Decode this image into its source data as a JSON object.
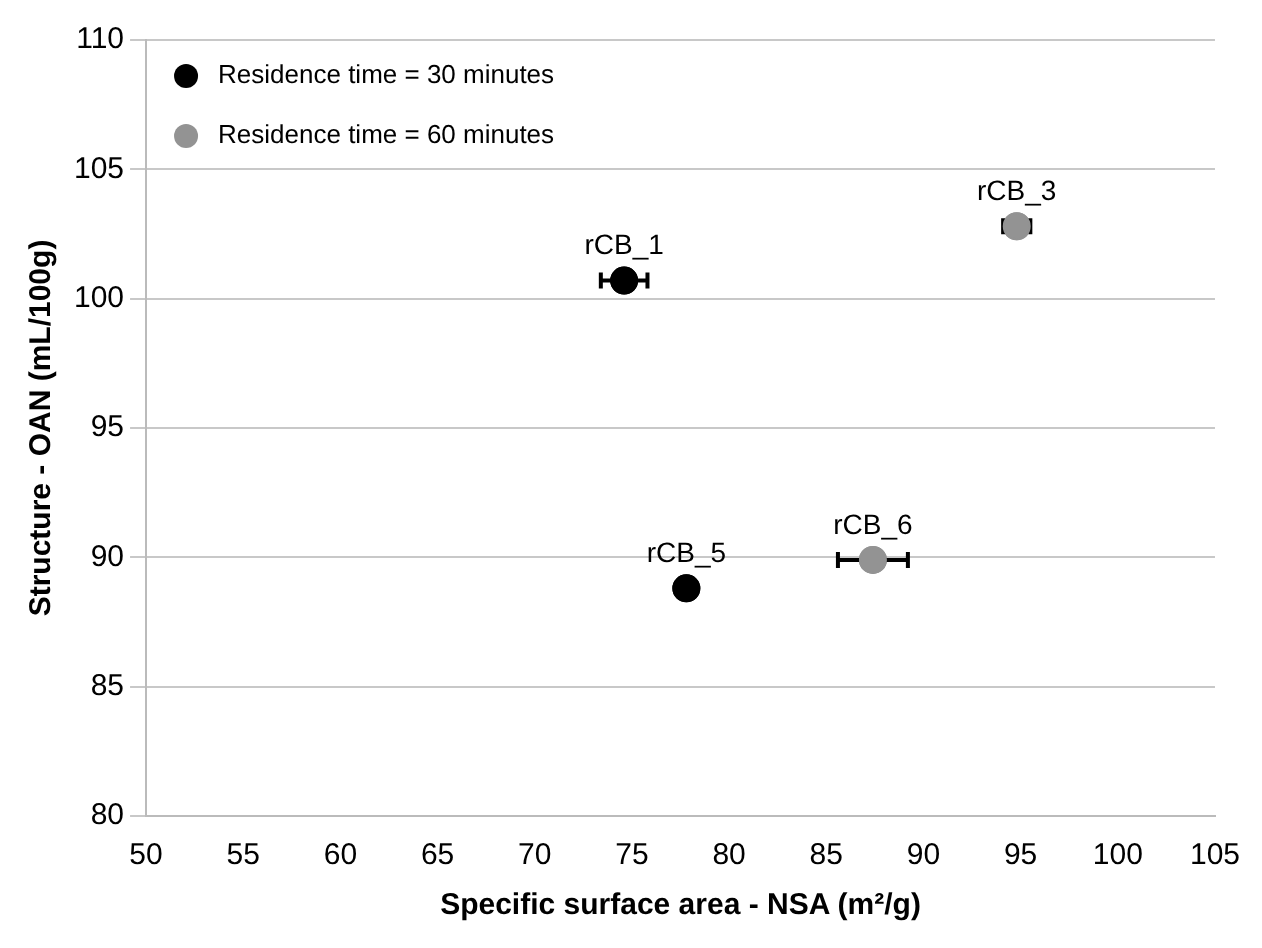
{
  "chart_data": {
    "type": "scatter",
    "xlabel": "Specific surface area - NSA (m²/g)",
    "ylabel": "Structure - OAN (mL/100g)",
    "series": [
      {
        "name": "Residence time = 30 minutes",
        "color": "#000000",
        "x": [
          74.6,
          77.8
        ],
        "values": [
          100.7,
          88.8
        ],
        "xerrors": [
          1.2,
          null
        ]
      },
      {
        "name": "Residence time = 60 minutes",
        "color": "#939393",
        "x": [
          94.8,
          87.4
        ],
        "values": [
          102.8,
          89.9
        ],
        "xerrors": [
          0.7,
          1.8
        ]
      }
    ],
    "annotations": [
      {
        "text": "rCB_1",
        "x": 74.6,
        "y": 100.7
      },
      {
        "text": "rCB_5",
        "x": 77.8,
        "y": 88.8
      },
      {
        "text": "rCB_3",
        "x": 94.8,
        "y": 102.8
      },
      {
        "text": "rCB_6",
        "x": 87.4,
        "y": 89.9
      }
    ],
    "xlim": [
      50,
      105
    ],
    "xticks": [
      50,
      55,
      60,
      65,
      70,
      75,
      80,
      85,
      90,
      95,
      100,
      105
    ],
    "ylim": [
      80,
      110
    ],
    "yticks": [
      80,
      85,
      90,
      95,
      100,
      105,
      110
    ],
    "grid": "y",
    "legend": "top left",
    "marker": "circle"
  }
}
